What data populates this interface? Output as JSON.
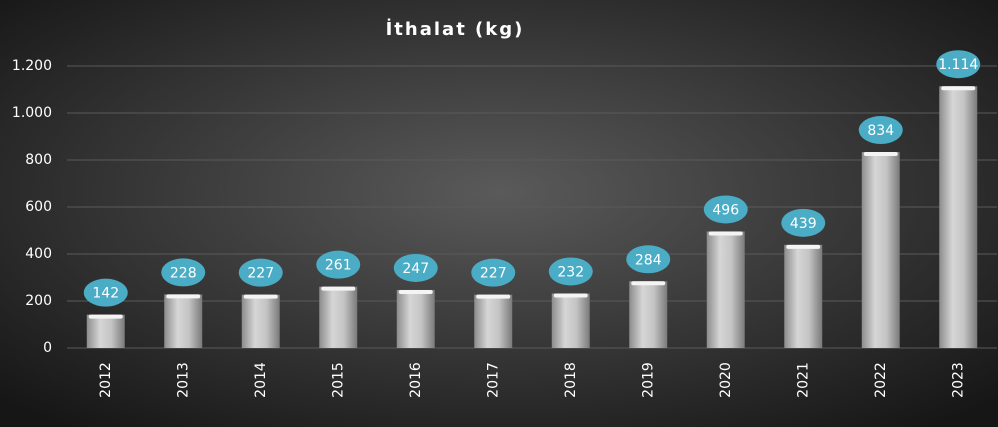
{
  "chart_data": {
    "type": "bar",
    "title": "İthalat  (kg)",
    "categories": [
      "2012",
      "2013",
      "2014",
      "2015",
      "2016",
      "2017",
      "2018",
      "2019",
      "2020",
      "2021",
      "2022",
      "2023"
    ],
    "values": [
      142,
      228,
      227,
      261,
      247,
      227,
      232,
      284,
      496,
      439,
      834,
      1114
    ],
    "value_labels": [
      "142",
      "228",
      "227",
      "261",
      "247",
      "227",
      "232",
      "284",
      "496",
      "439",
      "834",
      "1.114"
    ],
    "color": "#b4b4b4",
    "label_color": "#4bacc6",
    "ylim": [
      0,
      1200
    ],
    "yticks": [
      0,
      200,
      400,
      600,
      800,
      {
        "value": 1000,
        "label": "1.000"
      },
      {
        "value": 1200,
        "label": "1.200"
      }
    ],
    "grid": true
  }
}
